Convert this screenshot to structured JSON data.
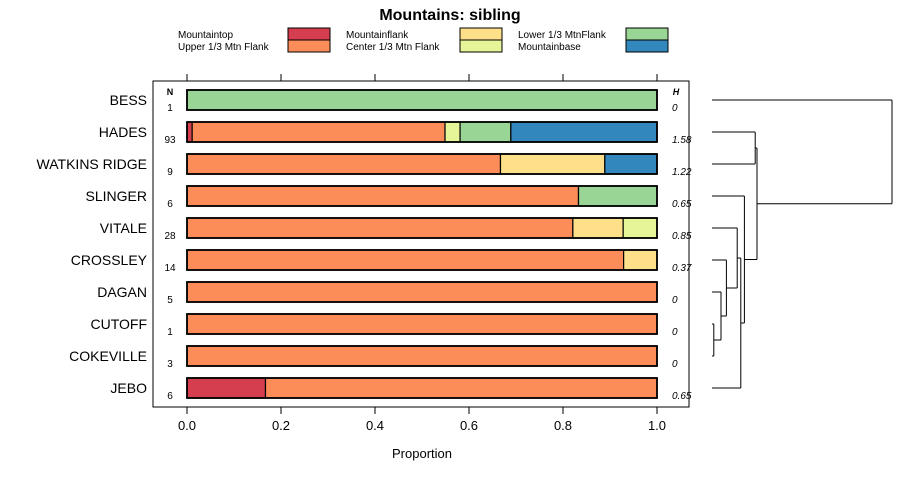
{
  "chart_data": {
    "type": "bar",
    "orientation": "horizontal",
    "stacked": true,
    "title": "Mountains: sibling",
    "xlabel": "Proportion",
    "xlim": [
      0,
      1
    ],
    "xticks": [
      "0.0",
      "0.2",
      "0.4",
      "0.6",
      "0.8",
      "1.0"
    ],
    "n_header": "N",
    "h_header": "H",
    "legend": [
      {
        "name": "Mountaintop",
        "color": "#d53e4f"
      },
      {
        "name": "Upper 1/3 Mtn Flank",
        "color": "#fc8d59"
      },
      {
        "name": "Mountainflank",
        "color": "#fee08b"
      },
      {
        "name": "Center 1/3 Mtn Flank",
        "color": "#e6f598"
      },
      {
        "name": "Lower 1/3 MtnFlank",
        "color": "#99d594"
      },
      {
        "name": "Mountainbase",
        "color": "#3288bd"
      }
    ],
    "categories": [
      "BESS",
      "HADES",
      "WATKINS RIDGE",
      "SLINGER",
      "VITALE",
      "CROSSLEY",
      "DAGAN",
      "CUTOFF",
      "COKEVILLE",
      "JEBO"
    ],
    "n": [
      "1",
      "93",
      "9",
      "6",
      "28",
      "14",
      "5",
      "1",
      "3",
      "6"
    ],
    "h": [
      "0",
      "1.58",
      "1.22",
      "0.65",
      "0.85",
      "0.37",
      "0",
      "0",
      "0",
      "0.65"
    ],
    "series": [
      {
        "name": "Mountaintop",
        "values": [
          0,
          0.011,
          0,
          0,
          0,
          0,
          0,
          0,
          0,
          0.167
        ]
      },
      {
        "name": "Upper 1/3 Mtn Flank",
        "values": [
          0,
          0.538,
          0.667,
          0.833,
          0.821,
          0.929,
          1.0,
          1.0,
          1.0,
          0.833
        ]
      },
      {
        "name": "Mountainflank",
        "values": [
          0,
          0,
          0.222,
          0,
          0.107,
          0.071,
          0,
          0,
          0,
          0
        ]
      },
      {
        "name": "Center 1/3 Mtn Flank",
        "values": [
          0,
          0.032,
          0,
          0,
          0.072,
          0,
          0,
          0,
          0,
          0
        ]
      },
      {
        "name": "Lower 1/3 MtnFlank",
        "values": [
          1.0,
          0.108,
          0,
          0.167,
          0,
          0,
          0,
          0,
          0,
          0
        ]
      },
      {
        "name": "Mountainbase",
        "values": [
          0,
          0.311,
          0.111,
          0,
          0,
          0,
          0,
          0,
          0,
          0
        ]
      }
    ],
    "dendrogram": {
      "leaves": [
        "BESS",
        "HADES",
        "WATKINS RIDGE",
        "SLINGER",
        "VITALE",
        "CROSSLEY",
        "DAGAN",
        "CUTOFF",
        "COKEVILLE",
        "JEBO"
      ],
      "merges": [
        {
          "a": "CUTOFF",
          "b": "COKEVILLE",
          "height": 0.01
        },
        {
          "a": "DAGAN",
          "b": "m1",
          "height": 0.05
        },
        {
          "a": "CROSSLEY",
          "b": "m2",
          "height": 0.08
        },
        {
          "a": "VITALE",
          "b": "m3",
          "height": 0.14
        },
        {
          "a": "m4",
          "b": "JEBO",
          "height": 0.16
        },
        {
          "a": "SLINGER",
          "b": "m5",
          "height": 0.18
        },
        {
          "a": "HADES",
          "b": "WATKINS RIDGE",
          "height": 0.24
        },
        {
          "a": "m7",
          "b": "m6",
          "height": 0.25
        },
        {
          "a": "BESS",
          "b": "m8",
          "height": 1.0
        }
      ]
    }
  }
}
